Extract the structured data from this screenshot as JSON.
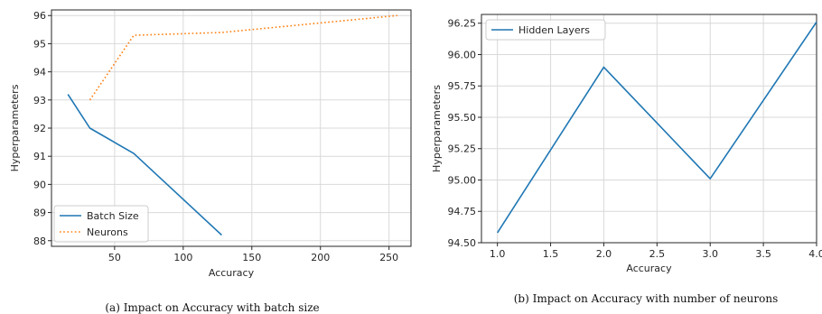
{
  "chart_data": [
    {
      "type": "line",
      "xlabel": "Accuracy",
      "ylabel": "Hyperparameters",
      "xlim": [
        4,
        266
      ],
      "ylim": [
        87.8,
        96.2
      ],
      "xticks": [
        50,
        100,
        150,
        200,
        250
      ],
      "yticks": [
        88,
        89,
        90,
        91,
        92,
        93,
        94,
        95,
        96
      ],
      "grid": true,
      "legend": "lower-left",
      "caption": "(a) Impact on Accuracy with batch size",
      "series": [
        {
          "name": "Batch Size",
          "style": "solid",
          "color": "#1f77b4",
          "x": [
            16,
            32,
            64,
            128
          ],
          "y": [
            93.2,
            92.0,
            91.1,
            88.2
          ]
        },
        {
          "name": "Neurons",
          "style": "dotted",
          "color": "#ff7f0e",
          "x": [
            32,
            64,
            128,
            256
          ],
          "y": [
            93.0,
            95.3,
            95.4,
            96.0
          ]
        }
      ]
    },
    {
      "type": "line",
      "xlabel": "Accuracy",
      "ylabel": "Hyperparameters",
      "xlim": [
        0.85,
        4.0
      ],
      "ylim": [
        94.5,
        96.32
      ],
      "xticks": [
        "1.0",
        "1.5",
        "2.0",
        "2.5",
        "3.0",
        "3.5",
        "4.0"
      ],
      "yticks": [
        "94.50",
        "94.75",
        "95.00",
        "95.25",
        "95.50",
        "95.75",
        "96.00",
        "96.25"
      ],
      "grid": true,
      "legend": "upper-left",
      "caption": "(b) Impact on Accuracy with number of neurons",
      "series": [
        {
          "name": "Hidden Layers",
          "style": "solid",
          "color": "#1f77b4",
          "x": [
            1,
            2,
            3,
            4
          ],
          "y": [
            94.58,
            95.9,
            95.01,
            96.26
          ]
        }
      ]
    }
  ]
}
